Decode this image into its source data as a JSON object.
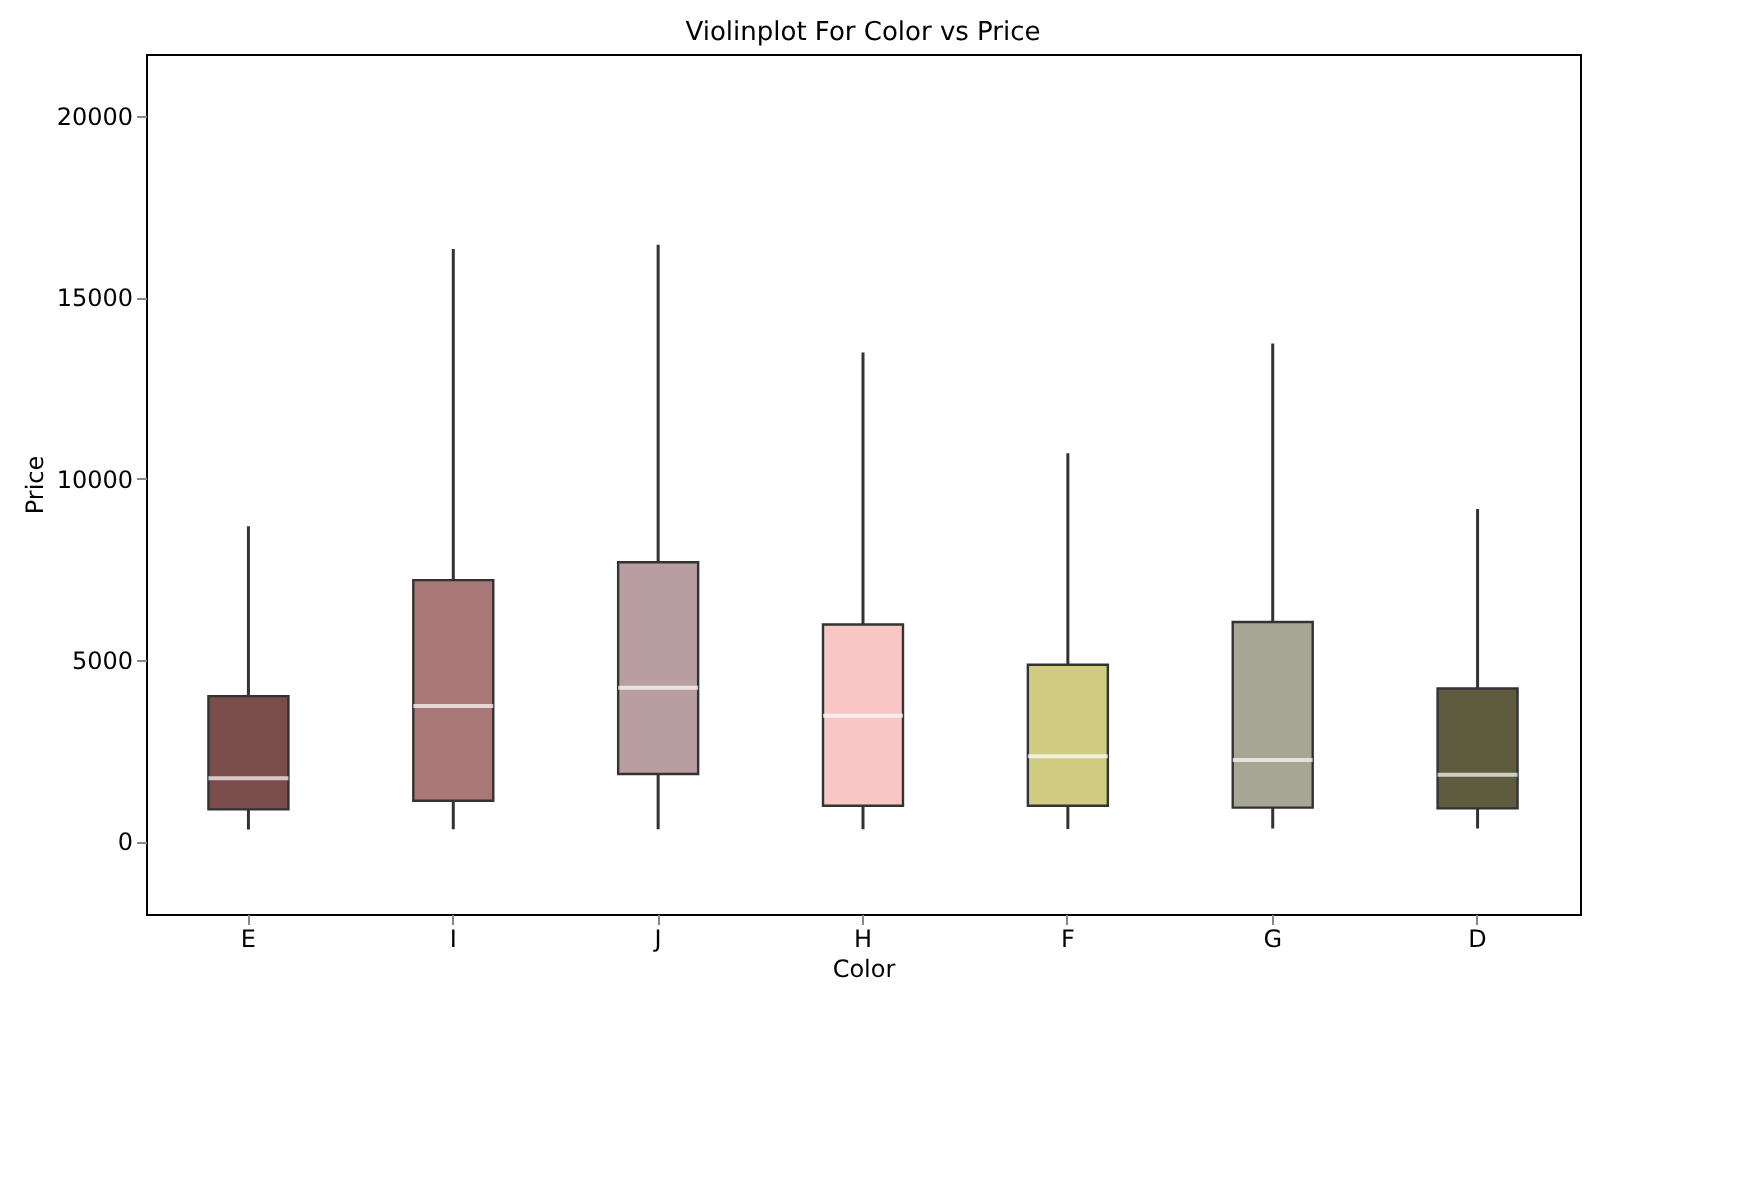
{
  "chart_data": {
    "type": "box",
    "title": "Violinplot For Color vs Price",
    "xlabel": "Color",
    "ylabel": "Price",
    "categories": [
      "E",
      "I",
      "J",
      "H",
      "F",
      "G",
      "D"
    ],
    "colors": [
      "#7a4c4c",
      "#a87878",
      "#b89ea0",
      "#f9c6c6",
      "#d0cc82",
      "#a7a594",
      "#5f5b3e"
    ],
    "boxes": [
      {
        "low": 326,
        "q1": 882,
        "median": 1739,
        "q3": 4003,
        "high": 8685
      },
      {
        "low": 334,
        "q1": 1120,
        "median": 3730,
        "q3": 7202,
        "high": 16325
      },
      {
        "low": 335,
        "q1": 1860,
        "median": 4234,
        "q3": 7695,
        "high": 16446
      },
      {
        "low": 337,
        "q1": 984,
        "median": 3460,
        "q3": 5980,
        "high": 13473
      },
      {
        "low": 342,
        "q1": 982,
        "median": 2344,
        "q3": 4868,
        "high": 10699
      },
      {
        "low": 354,
        "q1": 931,
        "median": 2242,
        "q3": 6048,
        "high": 13721
      },
      {
        "low": 357,
        "q1": 911,
        "median": 1838,
        "q3": 4214,
        "high": 9163
      }
    ],
    "ylim": [
      -2000,
      21700
    ],
    "yticks": [
      0,
      5000,
      10000,
      15000,
      20000
    ],
    "grid": false
  }
}
